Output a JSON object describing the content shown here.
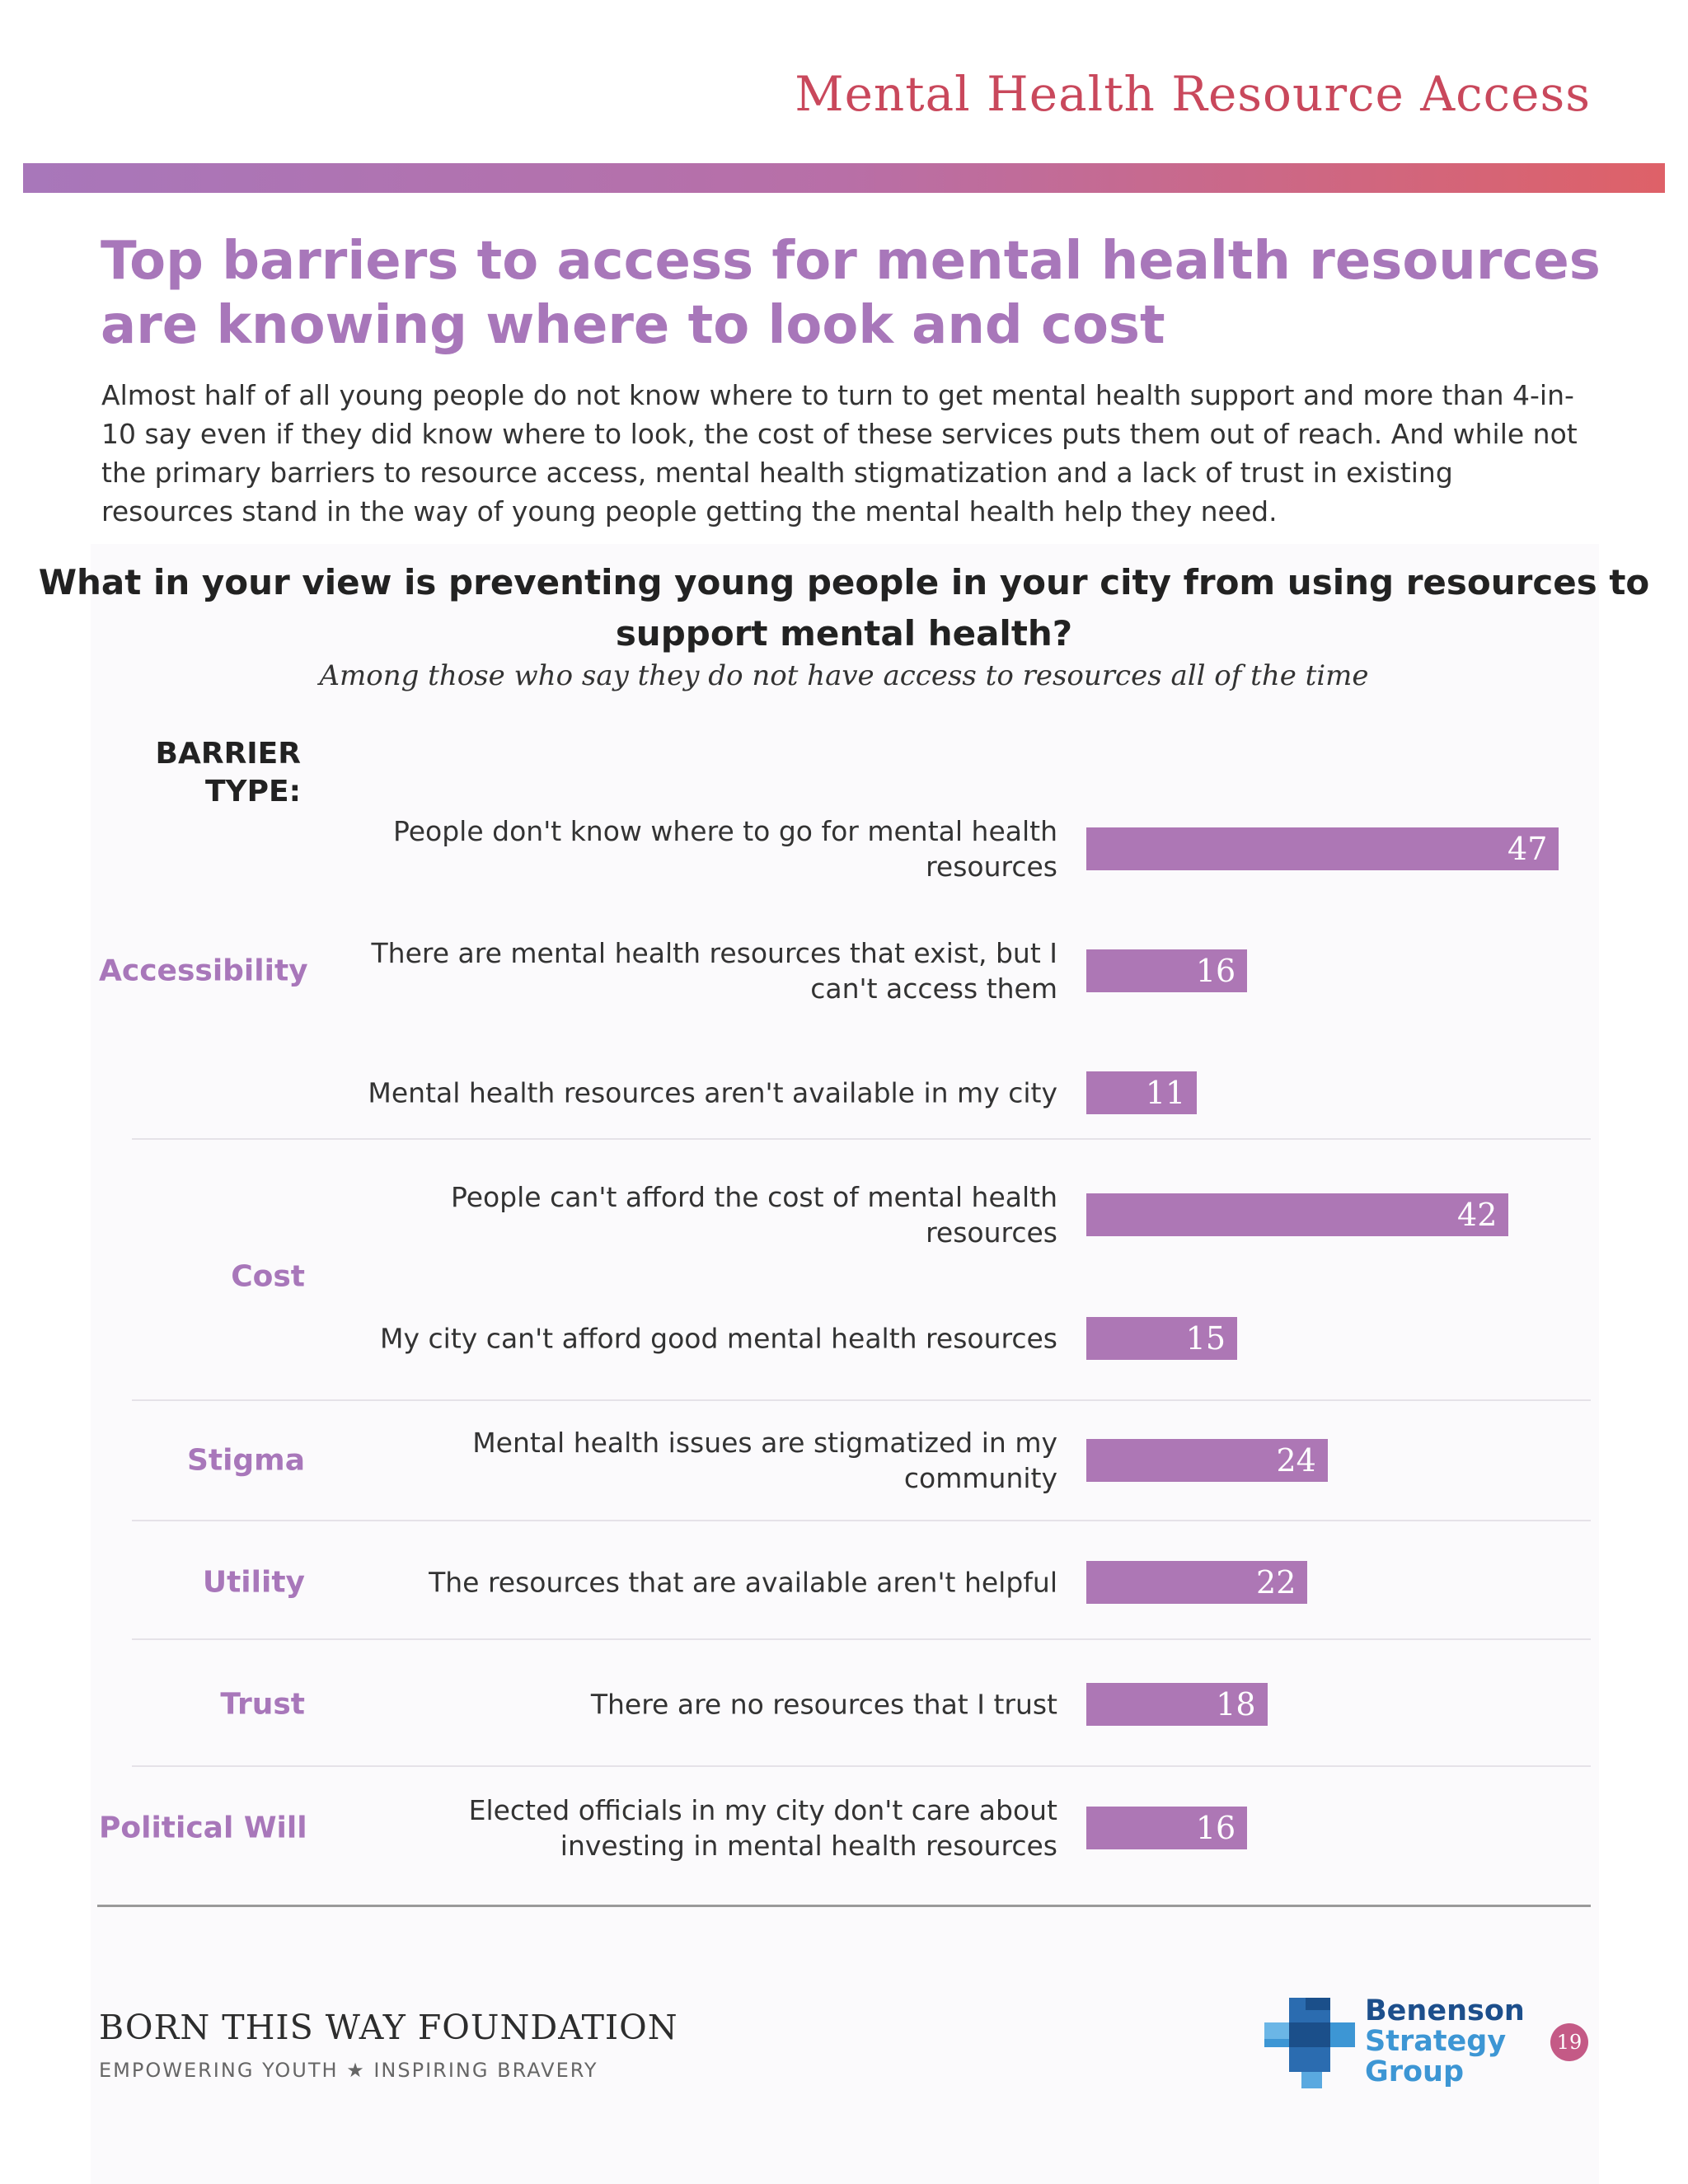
{
  "header": {
    "section_title": "Mental Health Resource Access"
  },
  "headline": "Top barriers to access for mental health resources are knowing where to look and cost",
  "intro": "Almost half of all young people do not know where to turn to get mental health support and more than 4-in-10 say even if they did know where to look, the cost of these services puts them out of reach. And while not the primary barriers to resource access, mental health stigmatization and a lack of trust in existing resources stand in the way of young people getting the mental health help they need.",
  "chart_data": {
    "type": "bar",
    "orientation": "horizontal",
    "title": "What in your view is preventing young people in your city from using resources to support mental health?",
    "subtitle": "Among those who say they do not have access to resources all of the time",
    "group_header": "BARRIER TYPE:",
    "groups": [
      {
        "name": "Accessibility",
        "rows": [
          0,
          1,
          2
        ]
      },
      {
        "name": "Cost",
        "rows": [
          3,
          4
        ]
      },
      {
        "name": "Stigma",
        "rows": [
          5
        ]
      },
      {
        "name": "Utility",
        "rows": [
          6
        ]
      },
      {
        "name": "Trust",
        "rows": [
          7
        ]
      },
      {
        "name": "Political Will",
        "rows": [
          8
        ]
      }
    ],
    "categories": [
      "People don't know where to go for mental health resources",
      "There are mental health resources that exist, but I can't access them",
      "Mental health resources aren't available in my city",
      "People can't afford the cost of mental health resources",
      "My city can't afford good mental health resources",
      "Mental health issues are stigmatized in my community",
      "The resources that are available aren't helpful",
      "There are no resources that I trust",
      "Elected officials in my city don't care about investing in mental health resources"
    ],
    "values": [
      47,
      16,
      11,
      42,
      15,
      24,
      22,
      18,
      16
    ],
    "color": "#ad77b5"
  },
  "footer": {
    "org_name": "BORN THIS WAY FOUNDATION",
    "org_tagline": "EMPOWERING YOUTH ★ INSPIRING BRAVERY",
    "partner_lines": [
      "Benenson",
      "Strategy",
      "Group"
    ],
    "page_number": "19"
  }
}
